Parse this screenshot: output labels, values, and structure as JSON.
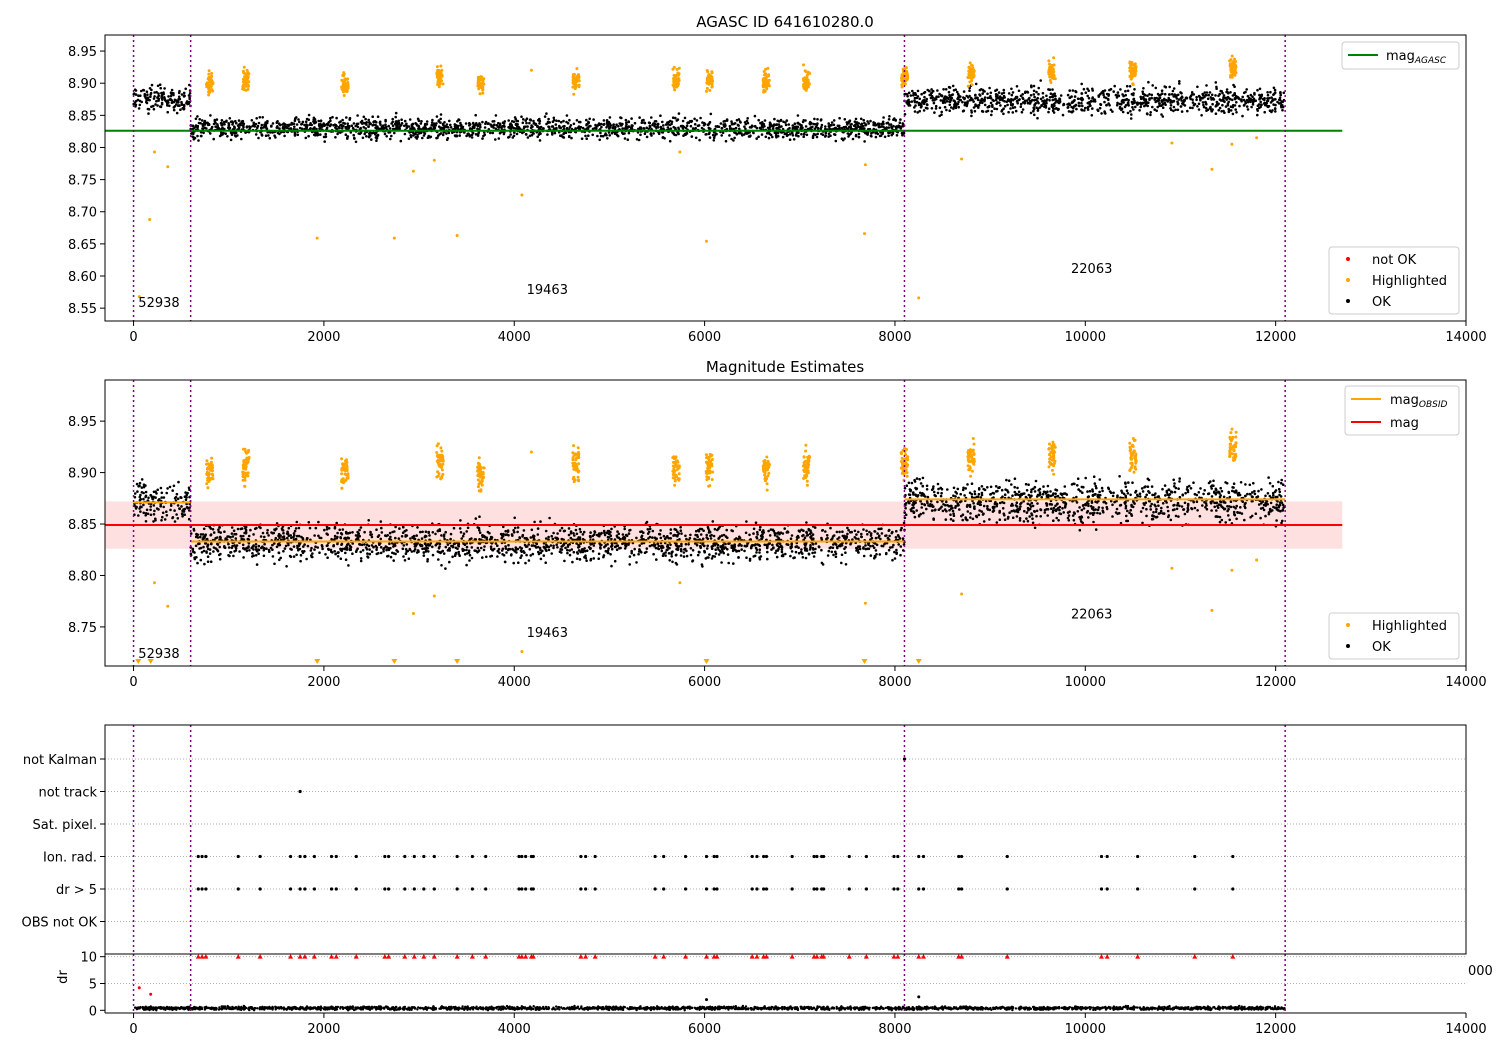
{
  "colors": {
    "ok": "#000000",
    "highlighted": "#ffa500",
    "not_ok": "#ff0000",
    "mag_agasc": "#008000",
    "mag_obsid": "#ffa500",
    "mag": "#ff0000",
    "band": "#ffcccc",
    "obs_boundary": "#800080",
    "grid": "#b0b0b0"
  },
  "chart_data": [
    {
      "type": "scatter",
      "title": "AGASC ID 641610280.0",
      "xlim": [
        -300,
        14000
      ],
      "ylim": [
        8.53,
        8.975
      ],
      "x_ticks": [
        0,
        2000,
        4000,
        6000,
        8000,
        10000,
        12000,
        14000
      ],
      "x_tick_labels": [
        "0",
        "2000",
        "4000",
        "6000",
        "8000",
        "10000",
        "12000",
        "14000"
      ],
      "y_ticks": [
        8.55,
        8.6,
        8.65,
        8.7,
        8.75,
        8.8,
        8.85,
        8.9,
        8.95
      ],
      "y_tick_labels": [
        "8.55",
        "8.60",
        "8.65",
        "8.70",
        "8.75",
        "8.80",
        "8.85",
        "8.90",
        "8.95"
      ],
      "obs_boundaries": [
        0,
        600,
        8100,
        12100
      ],
      "obs_labels": [
        {
          "text": "52938",
          "x": 50,
          "y": 8.552
        },
        {
          "text": "19463",
          "x": 4130,
          "y": 8.572
        },
        {
          "text": "22063",
          "x": 9850,
          "y": 8.605
        }
      ],
      "lines": [
        {
          "name": "mag",
          "sub": "AGASC",
          "y": 8.826,
          "x": [
            -300,
            12700
          ],
          "color": "#008000"
        }
      ],
      "line_legend": "top-right",
      "scatter_legend": "bottom-right",
      "scatter_legend_entries": [
        {
          "name": "not OK",
          "color": "#ff0000"
        },
        {
          "name": "Highlighted",
          "color": "#ffa500"
        },
        {
          "name": "OK",
          "color": "#000000"
        }
      ],
      "segments": [
        {
          "x": [
            0,
            600
          ],
          "mean": 8.875,
          "spread": 0.012
        },
        {
          "x": [
            600,
            8100
          ],
          "mean": 8.83,
          "spread": 0.01
        },
        {
          "x": [
            8100,
            12100
          ],
          "mean": 8.873,
          "spread": 0.013
        }
      ],
      "highlight_clusters": [
        {
          "x": 800,
          "y": 8.9
        },
        {
          "x": 1180,
          "y": 8.905
        },
        {
          "x": 2220,
          "y": 8.898
        },
        {
          "x": 3220,
          "y": 8.91
        },
        {
          "x": 3650,
          "y": 8.9
        },
        {
          "x": 4650,
          "y": 8.905
        },
        {
          "x": 5700,
          "y": 8.905
        },
        {
          "x": 6050,
          "y": 8.905
        },
        {
          "x": 6650,
          "y": 8.905
        },
        {
          "x": 7070,
          "y": 8.905
        },
        {
          "x": 8100,
          "y": 8.91
        },
        {
          "x": 8800,
          "y": 8.915
        },
        {
          "x": 9650,
          "y": 8.915
        },
        {
          "x": 10500,
          "y": 8.918
        },
        {
          "x": 11550,
          "y": 8.925
        }
      ],
      "outliers": [
        {
          "x": 60,
          "y": 8.568
        },
        {
          "x": 170,
          "y": 8.688
        },
        {
          "x": 220,
          "y": 8.793
        },
        {
          "x": 360,
          "y": 8.77
        },
        {
          "x": 1930,
          "y": 8.659
        },
        {
          "x": 2740,
          "y": 8.659
        },
        {
          "x": 2940,
          "y": 8.763
        },
        {
          "x": 3160,
          "y": 8.78
        },
        {
          "x": 3400,
          "y": 8.663
        },
        {
          "x": 4080,
          "y": 8.726
        },
        {
          "x": 4180,
          "y": 8.92
        },
        {
          "x": 5740,
          "y": 8.793
        },
        {
          "x": 6020,
          "y": 8.654
        },
        {
          "x": 7680,
          "y": 8.666
        },
        {
          "x": 7690,
          "y": 8.773
        },
        {
          "x": 8250,
          "y": 8.566
        },
        {
          "x": 8700,
          "y": 8.782
        },
        {
          "x": 10910,
          "y": 8.807
        },
        {
          "x": 11330,
          "y": 8.766
        },
        {
          "x": 11540,
          "y": 8.805
        },
        {
          "x": 11800,
          "y": 8.815
        }
      ]
    },
    {
      "type": "scatter",
      "title": "Magnitude Estimates",
      "xlim": [
        -300,
        14000
      ],
      "ylim": [
        8.712,
        8.99
      ],
      "x_ticks": [
        0,
        2000,
        4000,
        6000,
        8000,
        10000,
        12000,
        14000
      ],
      "x_tick_labels": [
        "0",
        "2000",
        "4000",
        "6000",
        "8000",
        "10000",
        "12000",
        "14000"
      ],
      "y_ticks": [
        8.75,
        8.8,
        8.85,
        8.9,
        8.95
      ],
      "y_tick_labels": [
        "8.75",
        "8.80",
        "8.85",
        "8.90",
        "8.95"
      ],
      "obs_boundaries": [
        0,
        600,
        8100,
        12100
      ],
      "obs_labels": [
        {
          "text": "52938",
          "x": 50,
          "y": 8.72
        },
        {
          "text": "19463",
          "x": 4130,
          "y": 8.74
        },
        {
          "text": "22063",
          "x": 9850,
          "y": 8.758
        }
      ],
      "band": {
        "y": [
          8.826,
          8.872
        ],
        "x": [
          -300,
          12700
        ]
      },
      "lines": [
        {
          "name": "mag",
          "sub": "OBSID",
          "color": "#ffa500",
          "steps": [
            {
              "x": [
                0,
                600
              ],
              "y": 8.871
            },
            {
              "x": [
                600,
                8100
              ],
              "y": 8.833
            },
            {
              "x": [
                8100,
                12100
              ],
              "y": 8.874
            }
          ]
        },
        {
          "name": "mag",
          "sub": "",
          "y": 8.849,
          "x": [
            -300,
            12700
          ],
          "color": "#ff0000"
        }
      ],
      "line_legend": "top-right",
      "scatter_legend": "bottom-right",
      "scatter_legend_entries": [
        {
          "name": "Highlighted",
          "color": "#ffa500"
        },
        {
          "name": "OK",
          "color": "#000000"
        }
      ],
      "segments": [
        {
          "x": [
            0,
            600
          ],
          "mean": 8.871,
          "spread": 0.012
        },
        {
          "x": [
            600,
            8100
          ],
          "mean": 8.832,
          "spread": 0.011
        },
        {
          "x": [
            8100,
            12100
          ],
          "mean": 8.872,
          "spread": 0.013
        }
      ],
      "highlight_clusters": [
        {
          "x": 800,
          "y": 8.9
        },
        {
          "x": 1180,
          "y": 8.905
        },
        {
          "x": 2220,
          "y": 8.9
        },
        {
          "x": 3220,
          "y": 8.91
        },
        {
          "x": 3650,
          "y": 8.9
        },
        {
          "x": 4650,
          "y": 8.905
        },
        {
          "x": 5700,
          "y": 8.905
        },
        {
          "x": 6050,
          "y": 8.905
        },
        {
          "x": 6650,
          "y": 8.905
        },
        {
          "x": 7070,
          "y": 8.905
        },
        {
          "x": 8100,
          "y": 8.91
        },
        {
          "x": 8800,
          "y": 8.915
        },
        {
          "x": 9650,
          "y": 8.915
        },
        {
          "x": 10500,
          "y": 8.918
        },
        {
          "x": 11550,
          "y": 8.925
        }
      ],
      "outliers": [
        {
          "x": 220,
          "y": 8.793
        },
        {
          "x": 360,
          "y": 8.77
        },
        {
          "x": 2940,
          "y": 8.763
        },
        {
          "x": 3160,
          "y": 8.78
        },
        {
          "x": 4080,
          "y": 8.726
        },
        {
          "x": 4180,
          "y": 8.92
        },
        {
          "x": 5740,
          "y": 8.793
        },
        {
          "x": 7690,
          "y": 8.773
        },
        {
          "x": 8700,
          "y": 8.782
        },
        {
          "x": 10910,
          "y": 8.807
        },
        {
          "x": 11330,
          "y": 8.766
        },
        {
          "x": 11540,
          "y": 8.805
        },
        {
          "x": 11800,
          "y": 8.815
        }
      ],
      "clipped_markers_x": [
        50,
        180,
        1930,
        2740,
        3400,
        6020,
        7680,
        8250
      ]
    },
    {
      "type": "scatter",
      "title": "",
      "xlim": [
        -300,
        14000
      ],
      "flag_rows": [
        "not Kalman",
        "not track",
        "Sat. pixel.",
        "Ion. rad.",
        "dr > 5",
        "OBS not OK"
      ],
      "flag_points": {
        "not Kalman": [
          8100
        ],
        "not track": [
          1750
        ],
        "Sat. pixel.": [],
        "Ion. rad.": [
          680,
          720,
          760,
          1100,
          1330,
          1650,
          1750,
          1800,
          1900,
          2080,
          2130,
          2340,
          2640,
          2680,
          2850,
          2950,
          3050,
          3160,
          3400,
          3560,
          3700,
          4050,
          4080,
          4120,
          4180,
          4200,
          4700,
          4750,
          4850,
          5480,
          5570,
          5800,
          6020,
          6100,
          6130,
          6500,
          6550,
          6620,
          6650,
          6920,
          7150,
          7180,
          7230,
          7250,
          7520,
          7700,
          7990,
          8030,
          8250,
          8300,
          8670,
          8700,
          9180,
          10170,
          10230,
          10550,
          11150,
          11550
        ],
        "dr > 5": [
          680,
          720,
          760,
          1100,
          1330,
          1650,
          1750,
          1800,
          1900,
          2080,
          2130,
          2340,
          2640,
          2680,
          2850,
          2950,
          3050,
          3160,
          3400,
          3560,
          3700,
          4050,
          4080,
          4120,
          4180,
          4200,
          4700,
          4750,
          4850,
          5480,
          5570,
          5800,
          6020,
          6100,
          6130,
          6500,
          6550,
          6620,
          6650,
          6920,
          7150,
          7180,
          7230,
          7250,
          7520,
          7700,
          7990,
          8030,
          8250,
          8300,
          8670,
          8700,
          9180,
          10170,
          10230,
          10550,
          11150,
          11550
        ],
        "OBS not OK": []
      },
      "obs_boundaries": [
        0,
        600,
        8100,
        12100
      ]
    },
    {
      "type": "scatter",
      "title": "",
      "ylabel": "dr",
      "xlim": [
        -300,
        14000
      ],
      "ylim": [
        -0.5,
        10.5
      ],
      "x_ticks": [
        0,
        2000,
        4000,
        6000,
        8000,
        10000,
        12000,
        14000
      ],
      "x_tick_labels": [
        "0",
        "2000",
        "4000",
        "6000",
        "8000",
        "10000",
        "12000",
        "14000"
      ],
      "y_ticks": [
        0,
        5,
        10
      ],
      "y_tick_labels": [
        "0",
        "5",
        "10"
      ],
      "right_label": "000",
      "obs_boundaries": [
        0,
        600,
        8100,
        12100
      ],
      "baseline": {
        "x": [
          0,
          12100
        ],
        "mean": 0.4,
        "spread": 0.25
      },
      "clipped_markers_x": [
        680,
        720,
        760,
        1100,
        1330,
        1650,
        1750,
        1800,
        1900,
        2080,
        2130,
        2340,
        2640,
        2680,
        2850,
        2950,
        3050,
        3160,
        3400,
        3560,
        3700,
        4050,
        4080,
        4120,
        4180,
        4200,
        4700,
        4750,
        4850,
        5480,
        5570,
        5800,
        6020,
        6100,
        6130,
        6500,
        6550,
        6620,
        6650,
        6920,
        7150,
        7180,
        7230,
        7250,
        7520,
        7700,
        7990,
        8030,
        8250,
        8300,
        8670,
        8700,
        9180,
        10170,
        10230,
        10550,
        11150,
        11550
      ],
      "outliers": [
        {
          "x": 60,
          "y": 4.2,
          "color": "#ff0000"
        },
        {
          "x": 180,
          "y": 3.0,
          "color": "#ff0000"
        },
        {
          "x": 6020,
          "y": 2.0,
          "color": "#000000"
        },
        {
          "x": 8250,
          "y": 2.5,
          "color": "#000000"
        }
      ]
    }
  ]
}
